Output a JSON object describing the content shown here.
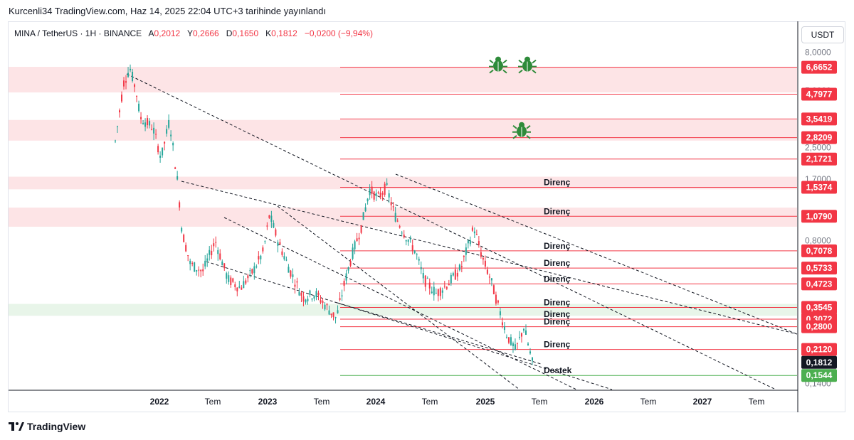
{
  "header": {
    "published": "Kurcenli34 TradingView.com, Haz 14, 2025 22:04 UTC+3 tarihinde yayınlandı"
  },
  "legend": {
    "symbol": "MINA / TetherUS · 1H · BINANCE",
    "o_label": "A",
    "o_value": "0,2012",
    "h_label": "Y",
    "h_value": "0,2666",
    "l_label": "D",
    "l_value": "0,1650",
    "c_label": "K",
    "c_value": "0,1812",
    "change": "−0,0200 (−9,94%)"
  },
  "unit": "USDT",
  "brand": "TradingView",
  "colors": {
    "up": "#26a69a",
    "down": "#f23645",
    "level": "#f23645",
    "support": "#4caf50",
    "last": "#131722",
    "zone_red": "#fde4e6",
    "zone_green": "#e8f5e9"
  },
  "chart_data": {
    "type": "line",
    "scale": "log",
    "ylim": [
      0.13,
      9.0
    ],
    "x_ticks": [
      "2022",
      "Tem",
      "2023",
      "Tem",
      "2024",
      "Tem",
      "2025",
      "Tem",
      "2026",
      "Tem",
      "2027",
      "Tem"
    ],
    "y_ticks": [
      "8,0000",
      "5,0000",
      "2,5000",
      "1,7000",
      "0,8000",
      "0,1400"
    ],
    "levels": [
      {
        "value": 6.6652,
        "label": "6,6652",
        "kind": "level",
        "text": ""
      },
      {
        "value": 4.7977,
        "label": "4,7977",
        "kind": "level",
        "text": ""
      },
      {
        "value": 3.5419,
        "label": "3,5419",
        "kind": "level",
        "text": ""
      },
      {
        "value": 2.8209,
        "label": "2,8209",
        "kind": "level",
        "text": ""
      },
      {
        "value": 2.1721,
        "label": "2,1721",
        "kind": "level",
        "text": ""
      },
      {
        "value": 1.5374,
        "label": "1,5374",
        "kind": "level",
        "text": "Direnç"
      },
      {
        "value": 1.079,
        "label": "1,0790",
        "kind": "level",
        "text": "Direnç"
      },
      {
        "value": 0.7078,
        "label": "0,7078",
        "kind": "level",
        "text": "Direnç"
      },
      {
        "value": 0.5733,
        "label": "0,5733",
        "kind": "level",
        "text": "Direnç"
      },
      {
        "value": 0.4723,
        "label": "0,4723",
        "kind": "level",
        "text": "Direnç"
      },
      {
        "value": 0.3545,
        "label": "0,3545",
        "kind": "level",
        "text": "Direnç"
      },
      {
        "value": 0.3072,
        "label": "0,3072",
        "kind": "level",
        "text": "Direnç"
      },
      {
        "value": 0.28,
        "label": "0,2800",
        "kind": "level",
        "text": "Direnç"
      },
      {
        "value": 0.212,
        "label": "0,2120",
        "kind": "level",
        "text": "Direnç"
      },
      {
        "value": 0.1812,
        "label": "0,1812",
        "kind": "last",
        "text": ""
      },
      {
        "value": 0.1544,
        "label": "0,1544",
        "kind": "support",
        "text": "Destek"
      }
    ],
    "zones": [
      {
        "low": 4.9,
        "high": 6.7,
        "kind": "red"
      },
      {
        "low": 2.72,
        "high": 3.5,
        "kind": "red"
      },
      {
        "low": 1.5,
        "high": 1.75,
        "kind": "red"
      },
      {
        "low": 0.95,
        "high": 1.2,
        "kind": "red"
      },
      {
        "low": 0.32,
        "high": 0.37,
        "kind": "green"
      }
    ],
    "icons": [
      {
        "name": "bug-icon",
        "value": 6.9,
        "t": 0.4
      },
      {
        "name": "bug-icon",
        "value": 6.9,
        "t": 0.43
      },
      {
        "name": "bug-icon",
        "value": 3.1,
        "t": 0.42
      }
    ],
    "price_path": [
      [
        0.0,
        2.7
      ],
      [
        0.02,
        5.5
      ],
      [
        0.035,
        6.6
      ],
      [
        0.05,
        5.0
      ],
      [
        0.06,
        3.6
      ],
      [
        0.09,
        3.2
      ],
      [
        0.11,
        2.2
      ],
      [
        0.13,
        3.5
      ],
      [
        0.15,
        1.6
      ],
      [
        0.16,
        0.9
      ],
      [
        0.18,
        0.6
      ],
      [
        0.21,
        0.55
      ],
      [
        0.24,
        0.8
      ],
      [
        0.27,
        0.5
      ],
      [
        0.3,
        0.45
      ],
      [
        0.33,
        0.55
      ],
      [
        0.355,
        0.7
      ],
      [
        0.37,
        1.1
      ],
      [
        0.39,
        0.8
      ],
      [
        0.42,
        0.55
      ],
      [
        0.45,
        0.4
      ],
      [
        0.48,
        0.42
      ],
      [
        0.51,
        0.35
      ],
      [
        0.53,
        0.31
      ],
      [
        0.55,
        0.48
      ],
      [
        0.57,
        0.7
      ],
      [
        0.59,
        0.95
      ],
      [
        0.61,
        1.5
      ],
      [
        0.63,
        1.35
      ],
      [
        0.65,
        1.55
      ],
      [
        0.67,
        1.1
      ],
      [
        0.69,
        0.9
      ],
      [
        0.72,
        0.7
      ],
      [
        0.74,
        0.5
      ],
      [
        0.77,
        0.42
      ],
      [
        0.8,
        0.48
      ],
      [
        0.83,
        0.58
      ],
      [
        0.86,
        0.95
      ],
      [
        0.88,
        0.65
      ],
      [
        0.9,
        0.5
      ],
      [
        0.92,
        0.35
      ],
      [
        0.94,
        0.25
      ],
      [
        0.96,
        0.21
      ],
      [
        0.98,
        0.28
      ],
      [
        1.0,
        0.1812
      ]
    ]
  }
}
